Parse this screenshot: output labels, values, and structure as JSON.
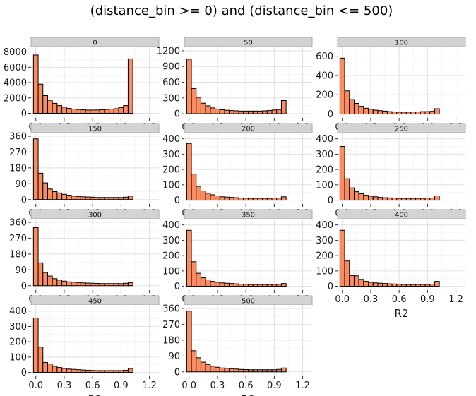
{
  "chart_data": {
    "type": "bar",
    "title": "(distance_bin >= 0) and (distance_bin <= 500)",
    "xlabel": "R2",
    "ylabel": "",
    "xlim": [
      -0.05,
      1.3
    ],
    "x_ticks": [
      "0.0",
      "0.3",
      "0.6",
      "0.9",
      "1.2"
    ],
    "bin_centers": [
      0.0,
      0.05,
      0.1,
      0.15,
      0.2,
      0.25,
      0.3,
      0.35,
      0.4,
      0.45,
      0.5,
      0.55,
      0.6,
      0.65,
      0.7,
      0.75,
      0.8,
      0.85,
      0.9,
      0.95,
      1.0
    ],
    "bar_color": "#fa8c61",
    "strip_color": "#d3d3d3",
    "grid": true,
    "panels": [
      {
        "name": "0",
        "ylim": [
          -600,
          8700
        ],
        "y_ticks": [
          0,
          2000,
          4000,
          6000,
          8000
        ],
        "values": [
          7600,
          3800,
          2300,
          1700,
          1300,
          1000,
          800,
          650,
          550,
          500,
          450,
          420,
          420,
          430,
          450,
          500,
          550,
          600,
          750,
          1000,
          7100
        ],
        "show_xlabel": false
      },
      {
        "name": "50",
        "ylim": [
          -80,
          1280
        ],
        "y_ticks": [
          0,
          300,
          600,
          900,
          1200
        ],
        "values": [
          1040,
          480,
          310,
          200,
          150,
          110,
          90,
          75,
          65,
          60,
          55,
          50,
          50,
          50,
          50,
          50,
          55,
          60,
          70,
          80,
          250
        ],
        "show_xlabel": false
      },
      {
        "name": "100",
        "ylim": [
          -40,
          700
        ],
        "y_ticks": [
          0,
          200,
          400,
          600
        ],
        "values": [
          580,
          240,
          150,
          110,
          80,
          60,
          50,
          40,
          35,
          30,
          25,
          22,
          20,
          20,
          20,
          22,
          22,
          25,
          25,
          28,
          55
        ],
        "show_xlabel": false
      },
      {
        "name": "150",
        "ylim": [
          -25,
          380
        ],
        "y_ticks": [
          0,
          90,
          180,
          270,
          360
        ],
        "values": [
          345,
          150,
          95,
          60,
          45,
          38,
          30,
          25,
          20,
          18,
          16,
          15,
          14,
          12,
          12,
          12,
          12,
          12,
          12,
          14,
          20
        ],
        "show_xlabel": false
      },
      {
        "name": "200",
        "ylim": [
          -25,
          440
        ],
        "y_ticks": [
          0,
          100,
          200,
          300,
          400
        ],
        "values": [
          370,
          170,
          90,
          60,
          45,
          35,
          28,
          22,
          20,
          18,
          16,
          14,
          13,
          12,
          12,
          12,
          12,
          12,
          14,
          14,
          22
        ],
        "show_xlabel": false
      },
      {
        "name": "250",
        "ylim": [
          -25,
          440
        ],
        "y_ticks": [
          0,
          100,
          200,
          300,
          400
        ],
        "values": [
          350,
          140,
          80,
          55,
          42,
          32,
          26,
          22,
          18,
          16,
          15,
          14,
          12,
          12,
          12,
          12,
          12,
          12,
          14,
          14,
          28
        ],
        "show_xlabel": false
      },
      {
        "name": "300",
        "ylim": [
          -25,
          380
        ],
        "y_ticks": [
          0,
          90,
          180,
          270,
          360
        ],
        "values": [
          330,
          130,
          75,
          55,
          40,
          32,
          26,
          22,
          20,
          18,
          16,
          15,
          14,
          13,
          12,
          12,
          12,
          12,
          12,
          14,
          18
        ],
        "show_xlabel": false
      },
      {
        "name": "350",
        "ylim": [
          -25,
          440
        ],
        "y_ticks": [
          0,
          100,
          200,
          300,
          400
        ],
        "values": [
          365,
          160,
          85,
          55,
          42,
          32,
          26,
          22,
          20,
          18,
          16,
          14,
          13,
          12,
          12,
          12,
          12,
          12,
          12,
          13,
          18
        ],
        "show_xlabel": false
      },
      {
        "name": "400",
        "ylim": [
          -25,
          440
        ],
        "y_ticks": [
          0,
          100,
          200,
          300,
          400
        ],
        "values": [
          365,
          165,
          70,
          68,
          45,
          32,
          26,
          22,
          20,
          18,
          16,
          15,
          13,
          12,
          12,
          12,
          12,
          12,
          12,
          14,
          32
        ],
        "show_xlabel": true
      },
      {
        "name": "450",
        "ylim": [
          -25,
          440
        ],
        "y_ticks": [
          0,
          100,
          200,
          300,
          400
        ],
        "values": [
          355,
          165,
          65,
          55,
          40,
          32,
          26,
          22,
          20,
          18,
          16,
          14,
          13,
          12,
          12,
          12,
          12,
          12,
          12,
          14,
          26
        ],
        "show_xlabel": true
      },
      {
        "name": "500",
        "ylim": [
          -25,
          380
        ],
        "y_ticks": [
          0,
          90,
          180,
          270,
          360
        ],
        "values": [
          345,
          120,
          80,
          55,
          42,
          32,
          26,
          22,
          20,
          18,
          16,
          14,
          13,
          12,
          12,
          12,
          12,
          12,
          12,
          14,
          22
        ],
        "show_xlabel": true
      }
    ]
  }
}
